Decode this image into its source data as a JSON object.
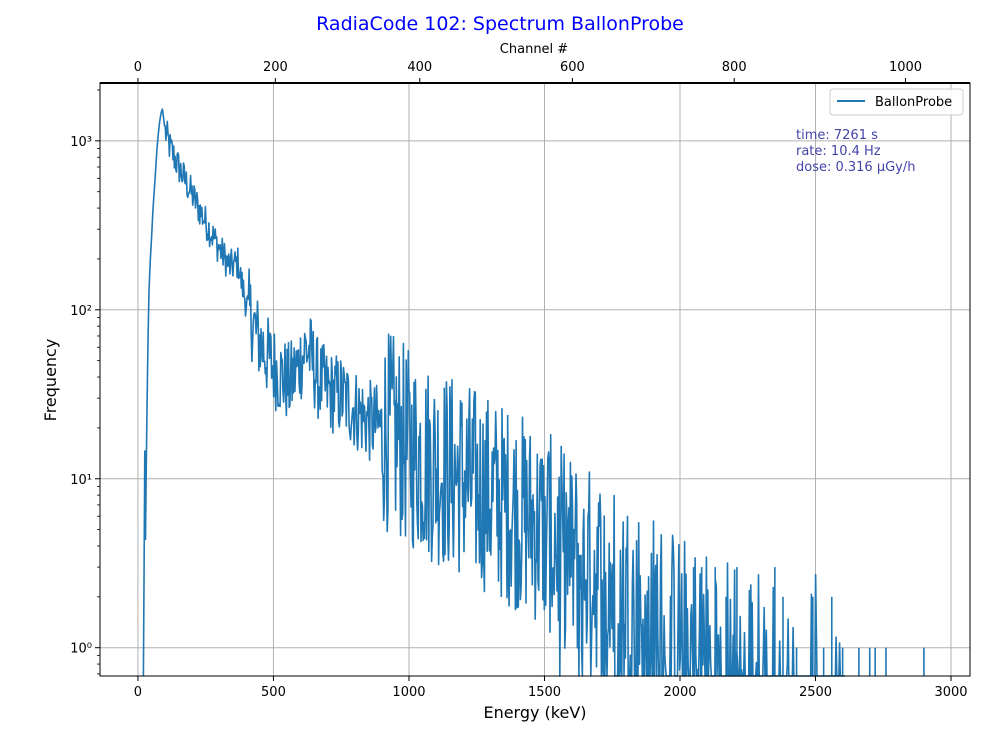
{
  "chart_data": {
    "type": "line",
    "title": "RadiaCode 102: Spectrum BallonProbe",
    "xlabel": "Energy (keV)",
    "ylabel": "Frequency",
    "x2label": "Channel #",
    "xlim": [
      -140,
      3070
    ],
    "ylim": [
      0.68,
      2200
    ],
    "yscale": "log",
    "x_ticks": [
      0,
      500,
      1000,
      1500,
      2000,
      2500,
      3000
    ],
    "x_tick_labels": [
      "0",
      "500",
      "1000",
      "1500",
      "2000",
      "2500",
      "3000"
    ],
    "x2_ticks_kev": [
      0,
      507,
      1040,
      1603,
      2200,
      2832
    ],
    "x2_tick_labels": [
      "0",
      "200",
      "400",
      "600",
      "800",
      "1000"
    ],
    "y_ticks": [
      1,
      10,
      100,
      1000
    ],
    "y_tick_labels": [
      "10⁰",
      "10¹",
      "10²",
      "10³"
    ],
    "grid": true,
    "legend_position": "top-right",
    "title_color": "#0000ff",
    "annotation_color": "#4444aa",
    "annotations": [
      "time: 7261 s",
      "rate: 10.4 Hz",
      "dose: 0.316 μGy/h"
    ],
    "series": [
      {
        "name": "BallonProbe",
        "color": "#1f77b4",
        "anchors": [
          [
            20,
            0.68
          ],
          [
            22,
            2
          ],
          [
            25,
            16
          ],
          [
            28,
            4
          ],
          [
            30,
            10
          ],
          [
            35,
            40
          ],
          [
            40,
            120
          ],
          [
            45,
            190
          ],
          [
            50,
            260
          ],
          [
            55,
            380
          ],
          [
            60,
            500
          ],
          [
            65,
            650
          ],
          [
            70,
            900
          ],
          [
            75,
            1100
          ],
          [
            80,
            1300
          ],
          [
            85,
            1450
          ],
          [
            90,
            1550
          ],
          [
            95,
            1350
          ],
          [
            100,
            1150
          ],
          [
            120,
            900
          ],
          [
            150,
            700
          ],
          [
            200,
            480
          ],
          [
            250,
            330
          ],
          [
            300,
            230
          ],
          [
            340,
            180
          ],
          [
            370,
            190
          ],
          [
            380,
            150
          ],
          [
            400,
            110
          ],
          [
            440,
            70
          ],
          [
            480,
            52
          ],
          [
            520,
            42
          ],
          [
            560,
            36
          ],
          [
            600,
            50
          ],
          [
            620,
            60
          ],
          [
            640,
            52
          ],
          [
            660,
            40
          ],
          [
            700,
            33
          ],
          [
            750,
            31
          ],
          [
            800,
            26
          ],
          [
            850,
            22
          ],
          [
            900,
            20
          ],
          [
            950,
            18
          ],
          [
            1000,
            15
          ],
          [
            1100,
            12
          ],
          [
            1200,
            10
          ],
          [
            1300,
            8
          ],
          [
            1400,
            6.5
          ],
          [
            1500,
            5
          ],
          [
            1600,
            3.5
          ],
          [
            1700,
            2.8
          ],
          [
            1800,
            2.1
          ],
          [
            1900,
            1.6
          ],
          [
            2000,
            1.2
          ],
          [
            2100,
            1.0
          ],
          [
            2200,
            0.85
          ],
          [
            2300,
            0.75
          ],
          [
            2400,
            0.7
          ],
          [
            2600,
            0.68
          ],
          [
            3000,
            0.68
          ]
        ],
        "spikes": [
          [
            2050,
            3
          ],
          [
            2080,
            3
          ],
          [
            2130,
            3
          ],
          [
            2170,
            2
          ],
          [
            2210,
            3
          ],
          [
            2260,
            2
          ],
          [
            2290,
            2
          ],
          [
            2350,
            3
          ],
          [
            2380,
            2
          ],
          [
            2430,
            1
          ],
          [
            2490,
            2
          ],
          [
            2530,
            1
          ],
          [
            2560,
            2
          ],
          [
            2600,
            1
          ],
          [
            2660,
            1
          ],
          [
            2700,
            1
          ],
          [
            2720,
            1
          ],
          [
            2760,
            1
          ],
          [
            2900,
            1
          ]
        ]
      }
    ]
  }
}
